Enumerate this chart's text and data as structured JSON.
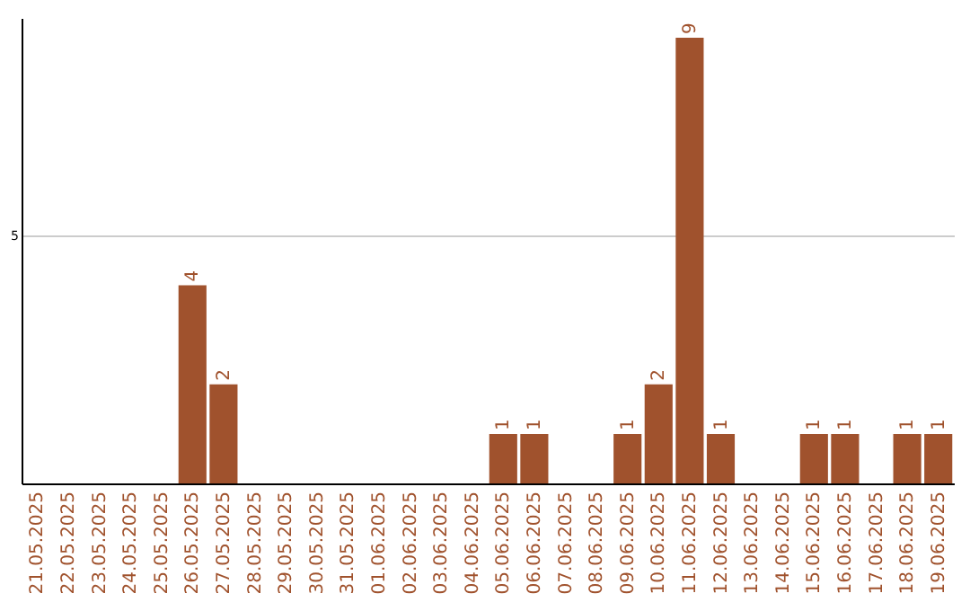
{
  "chart_data": {
    "type": "bar",
    "categories": [
      "21.05.2025",
      "22.05.2025",
      "23.05.2025",
      "24.05.2025",
      "25.05.2025",
      "26.05.2025",
      "27.05.2025",
      "28.05.2025",
      "29.05.2025",
      "30.05.2025",
      "31.05.2025",
      "01.06.2025",
      "02.06.2025",
      "03.06.2025",
      "04.06.2025",
      "05.06.2025",
      "06.06.2025",
      "07.06.2025",
      "08.06.2025",
      "09.06.2025",
      "10.06.2025",
      "11.06.2025",
      "12.06.2025",
      "13.06.2025",
      "14.06.2025",
      "15.06.2025",
      "16.06.2025",
      "17.06.2025",
      "18.06.2025",
      "19.06.2025"
    ],
    "values": [
      0,
      0,
      0,
      0,
      0,
      4,
      2,
      0,
      0,
      0,
      0,
      0,
      0,
      0,
      0,
      1,
      1,
      0,
      0,
      1,
      2,
      9,
      1,
      0,
      0,
      1,
      1,
      0,
      1,
      1
    ],
    "value_labels": [
      null,
      null,
      null,
      null,
      null,
      "4",
      "2",
      null,
      null,
      null,
      null,
      null,
      null,
      null,
      null,
      "1",
      "1",
      null,
      null,
      "1",
      "2",
      "9",
      "1",
      null,
      null,
      "1",
      "1",
      null,
      "1",
      "1"
    ],
    "color": "#a0522d",
    "ylim": [
      0,
      9.4
    ],
    "yticks": [
      5
    ],
    "grid": "y"
  }
}
